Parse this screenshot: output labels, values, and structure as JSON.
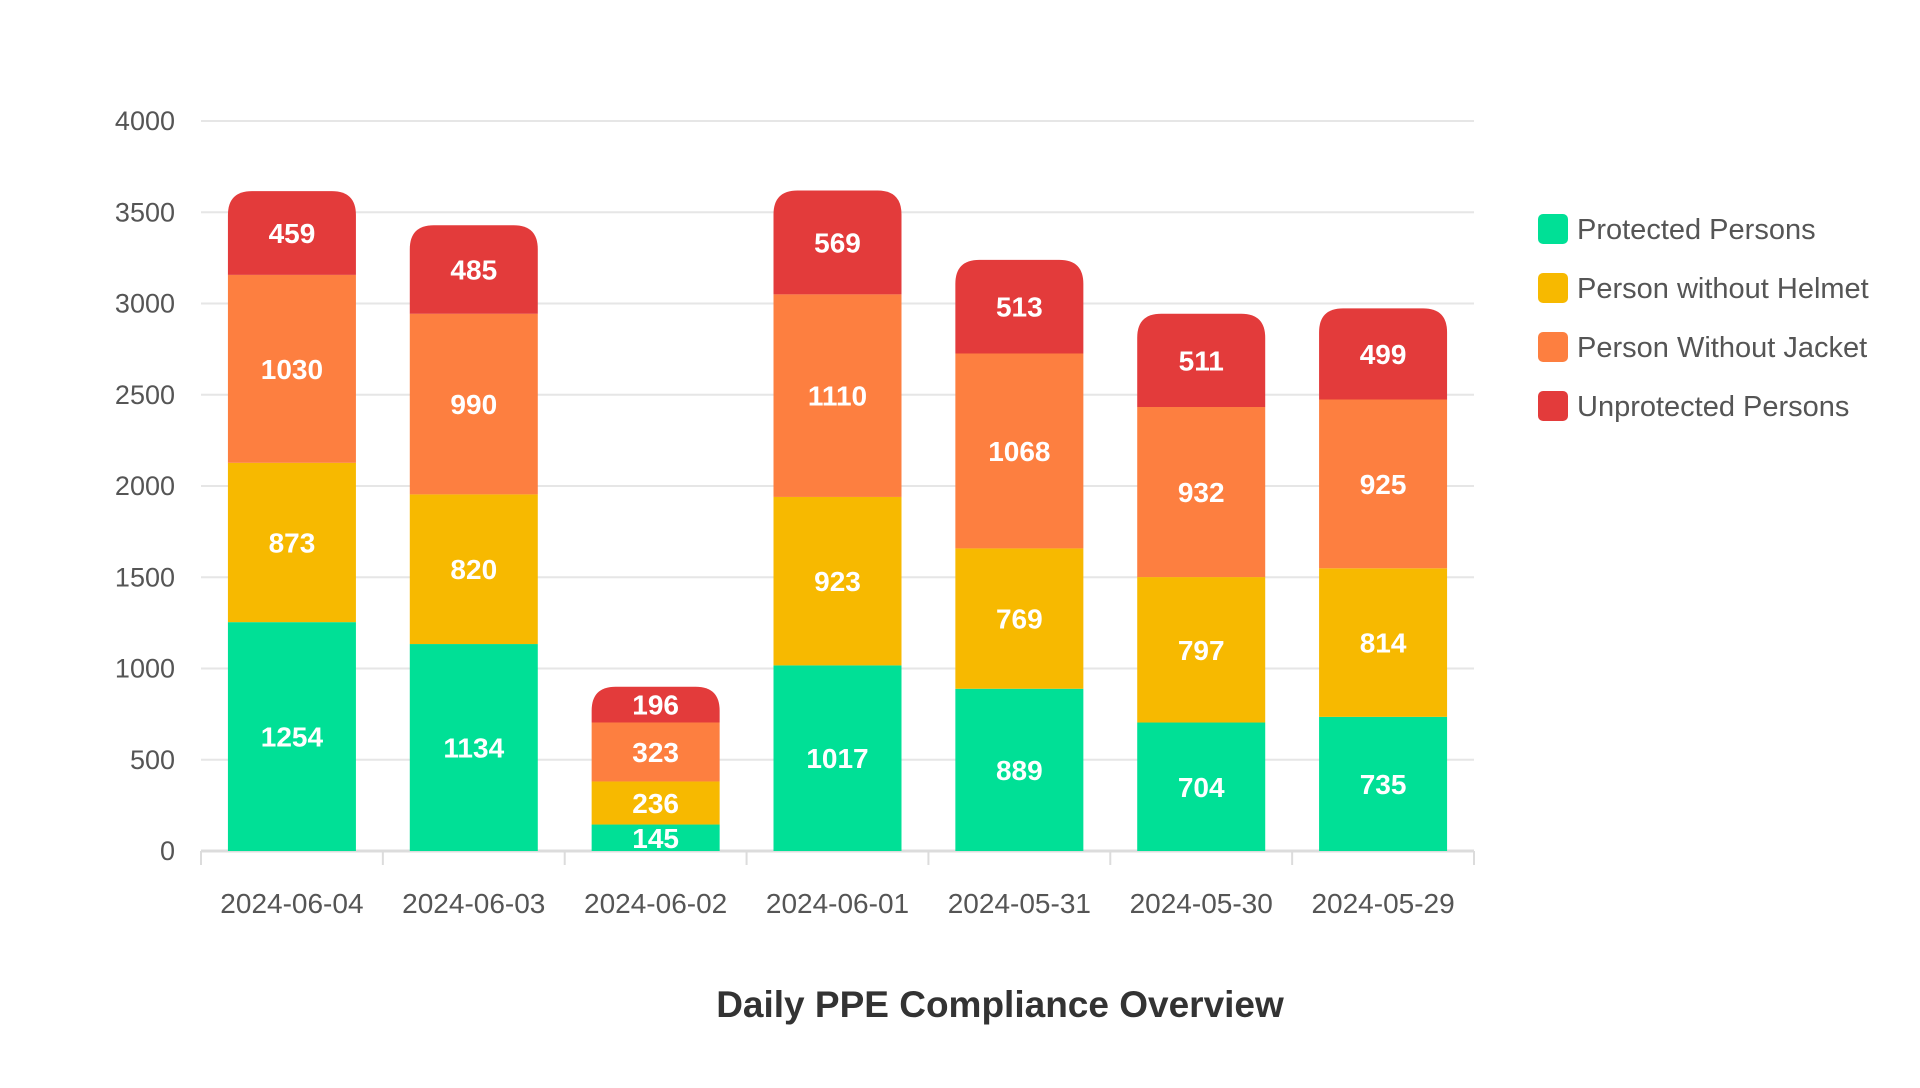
{
  "chart_data": {
    "type": "bar",
    "stacked": true,
    "title": "Daily PPE Compliance Overview",
    "xlabel": "",
    "ylabel": "",
    "ylim": [
      0,
      4000
    ],
    "yticks": [
      0,
      500,
      1000,
      1500,
      2000,
      2500,
      3000,
      3500,
      4000
    ],
    "grid": true,
    "legend_position": "right",
    "categories": [
      "2024-06-04",
      "2024-06-03",
      "2024-06-02",
      "2024-06-01",
      "2024-05-31",
      "2024-05-30",
      "2024-05-29"
    ],
    "series": [
      {
        "name": "Protected Persons",
        "color": "#00E096",
        "values": [
          1254,
          1134,
          145,
          1017,
          889,
          704,
          735
        ]
      },
      {
        "name": "Person without Helmet",
        "color": "#F7B900",
        "values": [
          873,
          820,
          236,
          923,
          769,
          797,
          814
        ]
      },
      {
        "name": "Person Without Jacket",
        "color": "#FD7F40",
        "values": [
          1030,
          990,
          323,
          1110,
          1068,
          932,
          925
        ]
      },
      {
        "name": "Unprotected Persons",
        "color": "#E33B3B",
        "values": [
          459,
          485,
          196,
          569,
          513,
          511,
          499
        ]
      }
    ]
  }
}
